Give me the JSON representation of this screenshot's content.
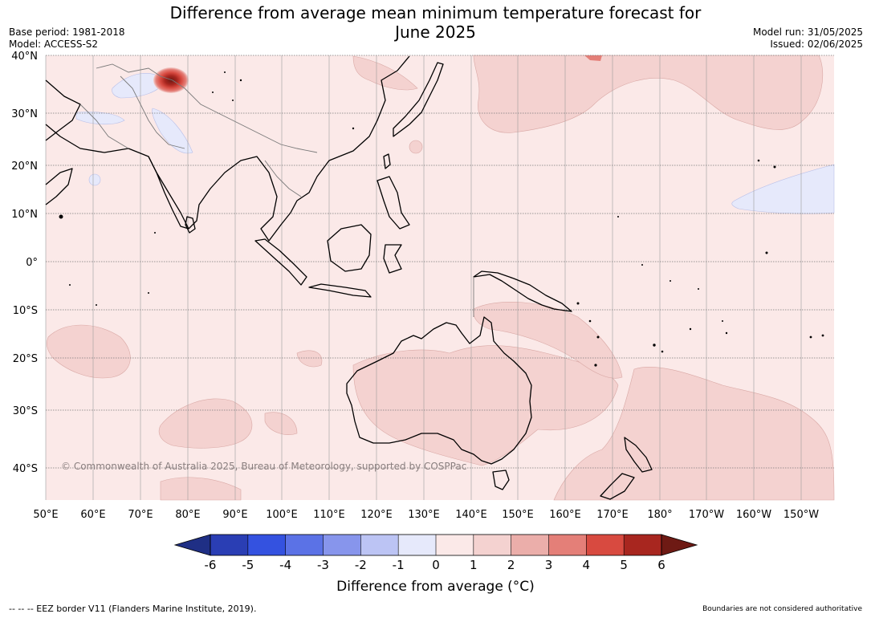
{
  "title": {
    "line1": "Difference from average mean minimum temperature forecast for",
    "line2": "June 2025"
  },
  "meta": {
    "base_period": "Base period: 1981-2018",
    "model": "Model: ACCESS-S2",
    "model_run": "Model run: 31/05/2025",
    "issued": "Issued: 02/06/2025"
  },
  "map": {
    "lat_labels": [
      "40°N",
      "30°N",
      "20°N",
      "10°N",
      "0°",
      "10°S",
      "20°S",
      "30°S",
      "40°S"
    ],
    "lon_labels": [
      "50°E",
      "60°E",
      "70°E",
      "80°E",
      "90°E",
      "100°E",
      "110°E",
      "120°E",
      "130°E",
      "140°E",
      "150°E",
      "160°E",
      "170°E",
      "180°",
      "170°W",
      "160°W",
      "150°W"
    ],
    "copyright": "© Commonwealth of Australia 2025, Bureau of Meteorology, supported by COSPPac",
    "background_color": "#fbe9e8"
  },
  "colorbar": {
    "ticks": [
      "-6",
      "-5",
      "-4",
      "-3",
      "-2",
      "-1",
      "0",
      "1",
      "2",
      "3",
      "4",
      "5",
      "6"
    ],
    "colors": [
      "#1f2f85",
      "#2a3eb4",
      "#3452e0",
      "#5b72e6",
      "#8795ec",
      "#bcc4f4",
      "#e6e9fb",
      "#fbe9e8",
      "#f4d2d0",
      "#ebaeaa",
      "#e47f78",
      "#d84a40",
      "#a8261f",
      "#6e1a14"
    ],
    "label": "Difference from average (°C)"
  },
  "footer": {
    "eez": "--  --  -- EEZ border V11 (Flanders Marine Institute, 2019).",
    "boundaries": "Boundaries are not considered authoritative"
  }
}
